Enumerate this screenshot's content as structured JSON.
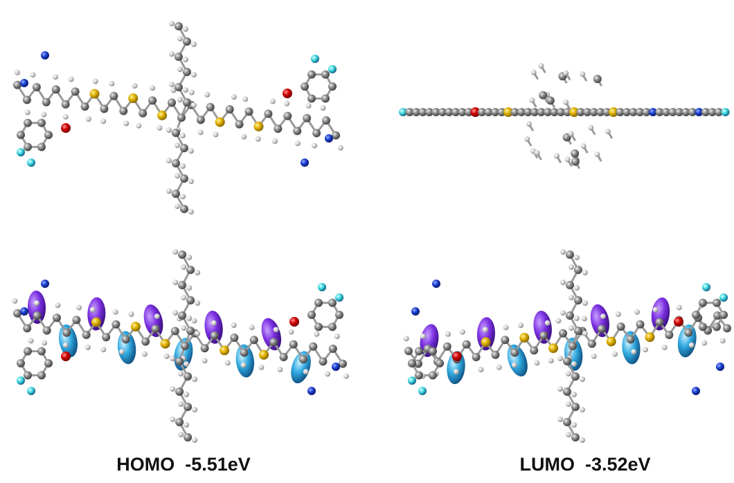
{
  "captions": {
    "homo": "HOMO  -5.51eV",
    "lumo": "LUMO  -3.52eV"
  }
}
